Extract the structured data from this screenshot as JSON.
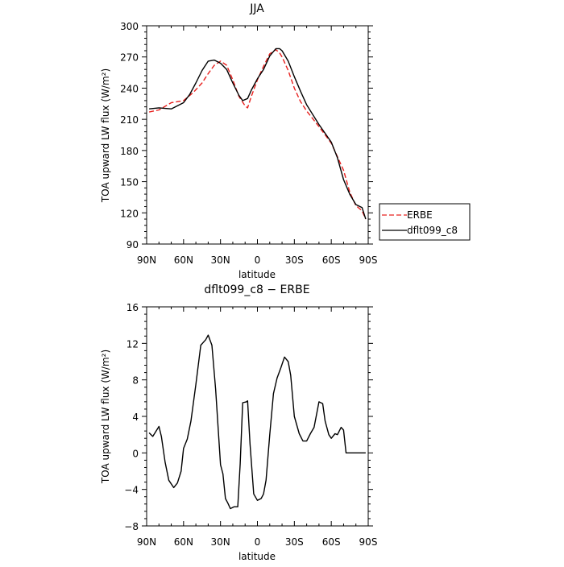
{
  "chart_data": [
    {
      "type": "line",
      "title": "JJA",
      "xlabel": "latitude",
      "ylabel": "TOA upward LW flux (W/m²)",
      "xlim": [
        90,
        -90
      ],
      "ylim": [
        90,
        300
      ],
      "x_ticks": [
        90,
        60,
        30,
        0,
        -30,
        -60,
        -90
      ],
      "x_tick_labels": [
        "90N",
        "60N",
        "30N",
        "0",
        "30S",
        "60S",
        "90S"
      ],
      "y_ticks": [
        90,
        120,
        150,
        180,
        210,
        240,
        270,
        300
      ],
      "y_tick_labels": [
        "90",
        "120",
        "150",
        "180",
        "210",
        "240",
        "270",
        "300"
      ],
      "legend_position": "right",
      "series": [
        {
          "name": "ERBE",
          "color": "#e8201e",
          "dash": "dashed",
          "x": [
            88,
            80,
            70,
            60,
            52,
            45,
            40,
            35,
            30,
            25,
            20,
            15,
            10,
            8,
            5,
            0,
            -5,
            -10,
            -15,
            -18,
            -20,
            -25,
            -30,
            -35,
            -40,
            -50,
            -60,
            -70,
            -75,
            -80,
            -85,
            -88
          ],
          "y": [
            217,
            219,
            226,
            228,
            236,
            245,
            254,
            262,
            266,
            262,
            248,
            232,
            223,
            221,
            232,
            248,
            261,
            273,
            277,
            274,
            270,
            257,
            240,
            227,
            218,
            203,
            187,
            161,
            140,
            127,
            122,
            114
          ]
        },
        {
          "name": "dflt099_c8",
          "color": "#000000",
          "dash": "solid",
          "x": [
            88,
            80,
            70,
            60,
            55,
            50,
            45,
            40,
            35,
            30,
            25,
            20,
            15,
            12,
            8,
            5,
            0,
            -5,
            -10,
            -15,
            -18,
            -20,
            -25,
            -30,
            -35,
            -40,
            -50,
            -60,
            -65,
            -70,
            -75,
            -80,
            -85,
            -88
          ],
          "y": [
            220,
            221,
            220,
            226,
            234,
            245,
            257,
            266,
            267,
            264,
            258,
            245,
            233,
            228,
            230,
            238,
            249,
            258,
            271,
            278,
            278,
            276,
            266,
            251,
            237,
            224,
            205,
            188,
            173,
            152,
            138,
            128,
            125,
            114
          ]
        }
      ]
    },
    {
      "type": "line",
      "title": "dflt099_c8 − ERBE",
      "xlabel": "latitude",
      "ylabel": "TOA upward LW flux (W/m²)",
      "xlim": [
        90,
        -90
      ],
      "ylim": [
        -8,
        16
      ],
      "x_ticks": [
        90,
        60,
        30,
        0,
        -30,
        -60,
        -90
      ],
      "x_tick_labels": [
        "90N",
        "60N",
        "30N",
        "0",
        "30S",
        "60S",
        "90S"
      ],
      "y_ticks": [
        -8,
        -4,
        0,
        4,
        8,
        12,
        16
      ],
      "y_tick_labels": [
        "−8",
        "−4",
        "0",
        "4",
        "8",
        "12",
        "16"
      ],
      "series": [
        {
          "color": "#000000",
          "dash": "solid",
          "x": [
            88,
            85,
            80,
            78,
            75,
            72,
            68,
            65,
            62,
            60,
            57,
            54,
            50,
            46,
            42,
            40,
            37,
            34,
            30,
            28,
            26,
            24,
            22,
            19,
            16,
            14,
            12,
            9,
            8,
            6,
            3,
            0,
            -3,
            -5,
            -7,
            -10,
            -13,
            -16,
            -19,
            -22,
            -25,
            -27,
            -30,
            -34,
            -37,
            -40,
            -43,
            -46,
            -50,
            -53,
            -55,
            -58,
            -60,
            -63,
            -65,
            -68,
            -70,
            -72,
            -75,
            -78,
            -80,
            -83,
            -85,
            -88
          ],
          "y": [
            2.2,
            1.8,
            2.9,
            1.8,
            -1,
            -3,
            -3.8,
            -3.3,
            -2,
            0.5,
            1.5,
            3.5,
            7.5,
            11.8,
            12.4,
            12.9,
            11.8,
            7,
            -1.3,
            -2.3,
            -5,
            -5.5,
            -6.1,
            -5.9,
            -5.9,
            -1.2,
            5.5,
            5.6,
            5.7,
            1,
            -4.5,
            -5.2,
            -5,
            -4.5,
            -3,
            2,
            6.5,
            8.2,
            9.3,
            10.5,
            10,
            8.5,
            4,
            2.1,
            1.3,
            1.3,
            2.1,
            2.8,
            5.6,
            5.4,
            3.5,
            2,
            1.6,
            2.1,
            2,
            2.8,
            2.5,
            0,
            0,
            0,
            0,
            0,
            0,
            0
          ]
        }
      ]
    }
  ]
}
